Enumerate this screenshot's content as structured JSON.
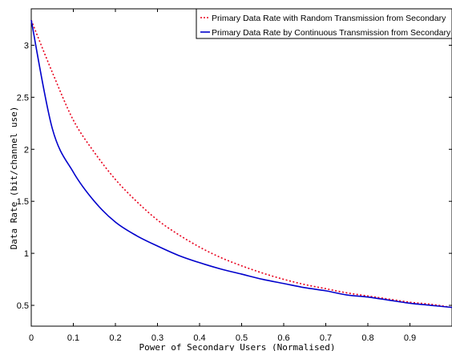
{
  "chart_data": {
    "type": "line",
    "title": "",
    "xlabel": "Power of Secondary Users (Normalised)",
    "ylabel": "Data Rate (bit/channel use)",
    "xlim": [
      0,
      1
    ],
    "ylim": [
      0.3,
      3.35
    ],
    "xticks": [
      "0",
      "0.1",
      "0.2",
      "0.3",
      "0.4",
      "0.5",
      "0.6",
      "0.7",
      "0.8",
      "0.9"
    ],
    "xtick_values": [
      0,
      0.1,
      0.2,
      0.3,
      0.4,
      0.5,
      0.6,
      0.7,
      0.8,
      0.9
    ],
    "yticks": [
      "0.5",
      "1",
      "1.5",
      "2",
      "2.5",
      "3"
    ],
    "ytick_values": [
      0.5,
      1,
      1.5,
      2,
      2.5,
      3
    ],
    "grid": false,
    "legend_position": "top-right",
    "x": [
      0,
      0.05,
      0.1,
      0.15,
      0.2,
      0.25,
      0.3,
      0.35,
      0.4,
      0.45,
      0.5,
      0.55,
      0.6,
      0.65,
      0.7,
      0.75,
      0.8,
      0.85,
      0.9,
      0.95,
      1.0
    ],
    "series": [
      {
        "name": "Primary Data Rate with Random Transmission from Secondary",
        "style": "dotted",
        "color": "#e8001c",
        "values": [
          3.24,
          2.74,
          2.28,
          1.97,
          1.71,
          1.5,
          1.32,
          1.18,
          1.06,
          0.96,
          0.88,
          0.81,
          0.75,
          0.7,
          0.66,
          0.62,
          0.59,
          0.56,
          0.53,
          0.51,
          0.48
        ]
      },
      {
        "name": "Primary Data Rate by Continuous Transmission from Secondary",
        "style": "solid",
        "color": "#0000cc",
        "values": [
          3.24,
          2.2,
          1.78,
          1.5,
          1.3,
          1.17,
          1.07,
          0.98,
          0.91,
          0.85,
          0.8,
          0.75,
          0.71,
          0.67,
          0.64,
          0.6,
          0.58,
          0.55,
          0.52,
          0.5,
          0.48
        ]
      }
    ]
  }
}
